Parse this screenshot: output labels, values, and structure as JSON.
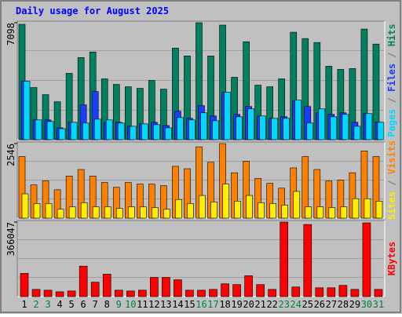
{
  "chart_data": {
    "type": "bar",
    "title": "Daily usage for August 2025",
    "categories": [
      "1",
      "2",
      "3",
      "4",
      "5",
      "6",
      "7",
      "8",
      "9",
      "10",
      "11",
      "12",
      "13",
      "14",
      "15",
      "16",
      "17",
      "18",
      "19",
      "20",
      "21",
      "22",
      "23",
      "24",
      "25",
      "26",
      "27",
      "28",
      "29",
      "30",
      "31"
    ],
    "category_colors": [
      "#000000",
      "#008040",
      "#008040",
      "#000000",
      "#000000",
      "#000000",
      "#000000",
      "#000000",
      "#008040",
      "#008040",
      "#000000",
      "#000000",
      "#000000",
      "#000000",
      "#000000",
      "#008040",
      "#008040",
      "#000000",
      "#000000",
      "#000000",
      "#000000",
      "#000000",
      "#008040",
      "#008040",
      "#000000",
      "#000000",
      "#000000",
      "#000000",
      "#000000",
      "#008040",
      "#008040"
    ],
    "legend_separator": " / ",
    "panels": [
      {
        "ylim": [
          0,
          7098
        ],
        "yticks": [
          7098
        ],
        "series": [
          {
            "name": "Hits",
            "color": "#008060",
            "values": [
              7002,
              3165,
              2734,
              2302,
              4029,
              4988,
              5324,
              3693,
              3357,
              3213,
              3117,
              3597,
              3069,
              5563,
              5084,
              7098,
              5084,
              6954,
              3789,
              5947,
              3309,
              3213,
              3693,
              6523,
              6139,
              5899,
              4460,
              4268,
              4316,
              6714,
              5803
            ]
          },
          {
            "name": "Files",
            "color": "#1a3cff",
            "values": [
              3549,
              1199,
              1199,
              719,
              1055,
              2110,
              2926,
              1055,
              1055,
              815,
              959,
              1055,
              863,
              1727,
              1295,
              2062,
              1439,
              2878,
              1535,
              2014,
              1439,
              1295,
              1391,
              2350,
              2014,
              1631,
              1535,
              1631,
              1055,
              1583,
              1055
            ]
          },
          {
            "name": "Pages",
            "color": "#00d8ff",
            "values": [
              3549,
              1199,
              1103,
              671,
              1055,
              1007,
              1247,
              1199,
              1007,
              815,
              959,
              911,
              719,
              1343,
              1199,
              1631,
              1151,
              2878,
              1391,
              1870,
              1439,
              1295,
              1295,
              2398,
              1007,
              1870,
              1391,
              1535,
              815,
              1583,
              1055
            ]
          }
        ]
      },
      {
        "ylim": [
          0,
          2546
        ],
        "yticks": [
          2546
        ],
        "series": [
          {
            "name": "Visits",
            "color": "#ff8000",
            "values": [
              2103,
              1135,
              1273,
              969,
              1439,
              1660,
              1439,
              1218,
              1052,
              1218,
              1162,
              1162,
              1107,
              1771,
              1688,
              2435,
              1909,
              2546,
              1550,
              1937,
              1356,
              1190,
              1024,
              1716,
              2103,
              1660,
              1273,
              1301,
              1550,
              2297,
              2103
            ]
          },
          {
            "name": "Sites",
            "color": "#ffee00",
            "values": [
              830,
              498,
              498,
              304,
              387,
              526,
              387,
              387,
              332,
              387,
              387,
              360,
              304,
              636,
              498,
              775,
              553,
              1162,
              581,
              775,
              526,
              498,
              443,
              913,
              387,
              387,
              360,
              387,
              664,
              664,
              581
            ]
          }
        ]
      },
      {
        "ylim": [
          0,
          366047
        ],
        "yticks": [
          366047
        ],
        "series": [
          {
            "name": "KBytes",
            "color": "#ff0000",
            "values": [
              114144,
              35424,
              31488,
              23616,
              27552,
              149568,
              70848,
              110208,
              31488,
              27552,
              31488,
              94464,
              94464,
              82656,
              31488,
              31488,
              35424,
              62976,
              59040,
              102336,
              59040,
              35424,
              366047,
              47232,
              354240,
              43296,
              43296,
              55104,
              35424,
              362112,
              35424
            ]
          }
        ]
      }
    ]
  }
}
